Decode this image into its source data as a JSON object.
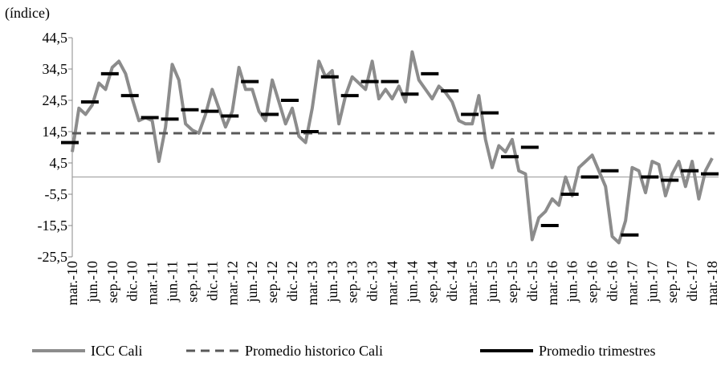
{
  "chart_data": {
    "type": "line",
    "y_label": "(índice)",
    "categories": [
      "mar.-10",
      null,
      null,
      "jun.-10",
      null,
      null,
      "sep.-10",
      null,
      null,
      "dic.-10",
      null,
      null,
      "mar.-11",
      null,
      null,
      "jun.-11",
      null,
      null,
      "sep.-11",
      null,
      null,
      "dic.-11",
      null,
      null,
      "mar.-12",
      null,
      null,
      "jun.-12",
      null,
      null,
      "sep.-12",
      null,
      null,
      "dic.-12",
      null,
      null,
      "mar.-13",
      null,
      null,
      "jun.-13",
      null,
      null,
      "sep.-13",
      null,
      null,
      "dic.-13",
      null,
      null,
      "mar.-14",
      null,
      null,
      "jun.-14",
      null,
      null,
      "sep.-14",
      null,
      null,
      "dic.-14",
      null,
      null,
      "mar.-15",
      null,
      null,
      "jun.-15",
      null,
      null,
      "sep.-15",
      null,
      null,
      "dic.-15",
      null,
      null,
      "mar.-16",
      null,
      null,
      "jun.-16",
      null,
      null,
      "sep.-16",
      null,
      null,
      "dic.-16",
      null,
      null,
      "mar.-17",
      null,
      null,
      "jun.-17",
      null,
      null,
      "sep.-17",
      null,
      null,
      "dic.-17",
      null,
      null,
      "mar.-18"
    ],
    "series": [
      {
        "name": "ICC Cali",
        "color": "#8c8c8c",
        "style": "line",
        "values": [
          8,
          22,
          20,
          23,
          30,
          28,
          35,
          37,
          33,
          25,
          18,
          19,
          18,
          5,
          16,
          36,
          31,
          17,
          15,
          14,
          20,
          28,
          22,
          16,
          21,
          35,
          28,
          28,
          21,
          18,
          31,
          24,
          17,
          22,
          13,
          11,
          22,
          37,
          32,
          34,
          17,
          26,
          32,
          30,
          28,
          37,
          25,
          28,
          25,
          29,
          24,
          40,
          31,
          28,
          25,
          29,
          27,
          24,
          18,
          17,
          17,
          26,
          12,
          3,
          10,
          8,
          12,
          2,
          1,
          -20,
          -13,
          -11,
          -7,
          -9,
          0,
          -6,
          3,
          5,
          7,
          2,
          -3,
          -19,
          -21,
          -14,
          3,
          2,
          -5,
          5,
          4,
          -6,
          1,
          5,
          -3,
          5,
          -7,
          2,
          6
        ]
      },
      {
        "name": "Promedio historico Cali",
        "color": "#595959",
        "style": "constant",
        "value": 14
      },
      {
        "name": "Promedio trimestres",
        "color": "#000000",
        "style": "dash",
        "values": [
          11,
          null,
          null,
          24,
          null,
          null,
          33,
          null,
          null,
          26,
          null,
          null,
          19,
          null,
          null,
          18.5,
          null,
          null,
          21.5,
          null,
          null,
          21,
          null,
          null,
          19.5,
          null,
          null,
          30.5,
          null,
          null,
          20,
          null,
          null,
          24.5,
          null,
          null,
          14.5,
          null,
          null,
          32,
          null,
          null,
          26,
          null,
          null,
          30.5,
          null,
          null,
          30.5,
          null,
          null,
          26.5,
          null,
          null,
          33,
          null,
          null,
          27.5,
          null,
          null,
          20,
          null,
          null,
          20.5,
          null,
          null,
          6.5,
          null,
          null,
          9.5,
          null,
          null,
          -15.5,
          null,
          null,
          -5.5,
          null,
          null,
          0,
          null,
          null,
          2,
          null,
          null,
          -18.5,
          null,
          null,
          0,
          null,
          null,
          -1,
          null,
          null,
          2,
          null,
          null,
          1
        ]
      }
    ],
    "ylim": [
      -25.5,
      44.5
    ],
    "yticks": [
      {
        "value": -25.5,
        "label": "-25,5"
      },
      {
        "value": -15.5,
        "label": "-15,5"
      },
      {
        "value": -5.5,
        "label": "-5,5"
      },
      {
        "value": 4.5,
        "label": "4,5"
      },
      {
        "value": 14.5,
        "label": "14,5"
      },
      {
        "value": 24.5,
        "label": "24,5"
      },
      {
        "value": 34.5,
        "label": "34,5"
      },
      {
        "value": 44.5,
        "label": "44,5"
      }
    ],
    "grid": false,
    "legend": "bottom"
  }
}
